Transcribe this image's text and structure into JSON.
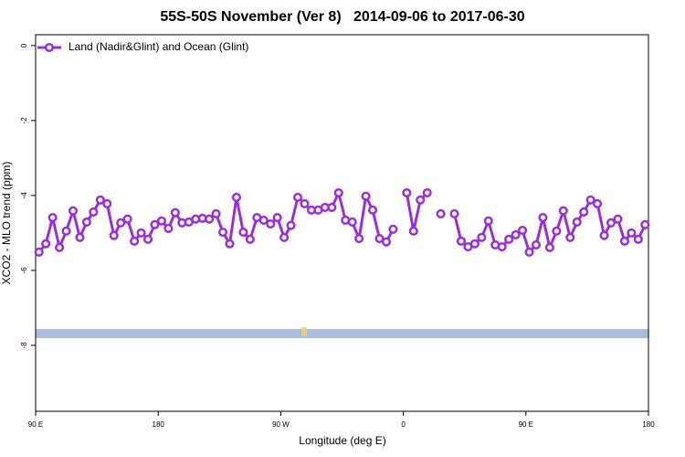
{
  "chart_data": {
    "type": "line",
    "title": "55S-50S November (Ver 8)   2014-09-06 to 2017-06-30",
    "x_label": "Longitude (deg E)",
    "y_label": "XCO2 - MLO trend (ppm)",
    "x": [
      92.5,
      97.5,
      102.5,
      107.5,
      112.5,
      117.5,
      122.5,
      127.5,
      132.5,
      137.5,
      142.5,
      147.5,
      152.5,
      157.5,
      162.5,
      167.5,
      172.5,
      177.5,
      182.5,
      187.5,
      192.5,
      197.5,
      202.5,
      207.5,
      212.5,
      217.5,
      222.5,
      227.5,
      232.5,
      237.5,
      242.5,
      247.5,
      252.5,
      257.5,
      262.5,
      267.5,
      272.5,
      277.5,
      282.5,
      287.5,
      292.5,
      297.5,
      302.5,
      307.5,
      312.5,
      317.5,
      322.5,
      327.5,
      332.5,
      337.5,
      342.5,
      347.5,
      352.5,
      357.5,
      362.5,
      367.5,
      372.5,
      377.5,
      382.5,
      387.5,
      392.5,
      397.5,
      402.5,
      407.5,
      412.5,
      417.5,
      422.5,
      427.5,
      432.5,
      437.5,
      442.5,
      447.5,
      452.5,
      457.5,
      462.5,
      467.5,
      472.5,
      477.5,
      482.5,
      487.5,
      492.5,
      497.5,
      502.5,
      507.5,
      512.5,
      517.5,
      522.5,
      527.5,
      532.5,
      537.5
    ],
    "series": [
      {
        "name": "Land (Nadir&Glint) and Ocean (Glint)",
        "color": "#9a2fd8",
        "values": [
          -5.51,
          -5.29,
          -4.59,
          -5.39,
          -4.95,
          -4.41,
          -5.12,
          -4.71,
          -4.44,
          -4.12,
          -4.22,
          -5.07,
          -4.73,
          -4.63,
          -5.22,
          -5.0,
          -5.17,
          -4.78,
          -4.68,
          -4.88,
          -4.46,
          -4.73,
          -4.71,
          -4.63,
          -4.61,
          -4.63,
          -4.49,
          -4.98,
          -5.29,
          -4.05,
          -4.98,
          -5.17,
          -4.59,
          -4.66,
          -4.76,
          -4.59,
          -5.12,
          -4.8,
          -4.05,
          -4.22,
          -4.39,
          -4.39,
          -4.32,
          -4.32,
          -3.93,
          -4.66,
          -4.71,
          -5.15,
          -4.02,
          -4.39,
          -5.15,
          -5.24,
          -4.9,
          null,
          -3.93,
          -4.95,
          -4.12,
          -3.93,
          null,
          -4.49,
          null,
          -4.49,
          -5.22,
          -5.37,
          -5.29,
          -5.12,
          -4.68,
          -5.32,
          -5.37,
          -5.17,
          -5.05,
          -4.93,
          -5.51,
          -5.32,
          -4.59,
          -5.39,
          -4.95,
          -4.41,
          -5.12,
          -4.71,
          -4.44,
          -4.12,
          -4.22,
          -5.07,
          -4.73,
          -4.63,
          -5.22,
          -5.0,
          -5.17,
          -4.78
        ]
      }
    ],
    "xlim": [
      90,
      540
    ],
    "xticks": [
      {
        "value": 90,
        "label": "90 E"
      },
      180,
      {
        "value": 270,
        "label": "90 W"
      },
      {
        "value": 360,
        "label": "0"
      },
      {
        "value": 450,
        "label": "90 E"
      },
      {
        "value": 540,
        "label": "180"
      }
    ],
    "ylim": [
      -9.76,
      0.29
    ],
    "yticks": [
      0,
      -2,
      -4,
      -6,
      -8
    ],
    "legend": "top-left"
  }
}
